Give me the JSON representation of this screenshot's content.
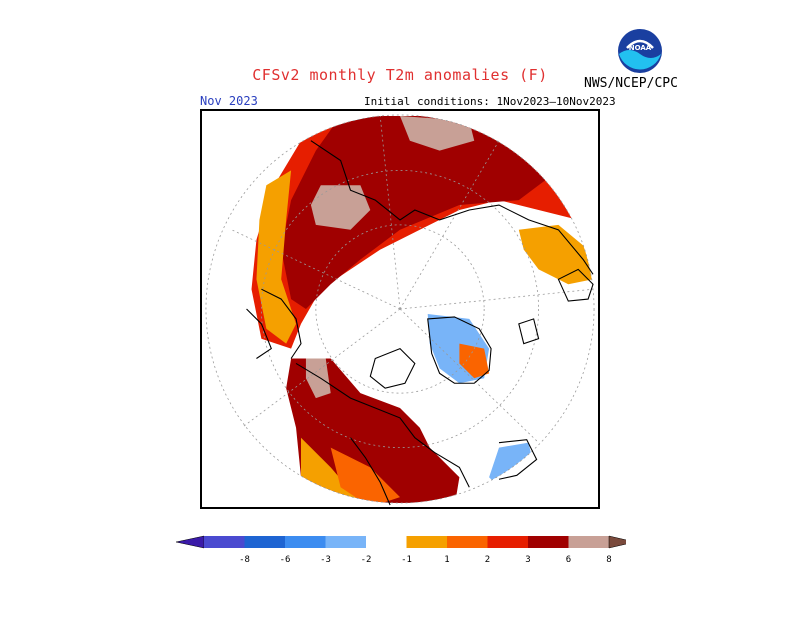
{
  "title": "CFSv2 monthly T2m anomalies (F)",
  "forecast_month": "Nov 2023",
  "initial_conditions": "Initial conditions: 1Nov2023–10Nov2023",
  "agency": "NWS/NCEP/CPC",
  "logo_text": "NOAA",
  "colors": {
    "title": "#e03030",
    "month": "#2a3fbf"
  },
  "legend": {
    "bins": [
      {
        "color": "#3a1aa8"
      },
      {
        "color": "#4a4ad0"
      },
      {
        "color": "#1e64d2"
      },
      {
        "color": "#3c8cf0"
      },
      {
        "color": "#78b4f8"
      },
      {
        "color": "#ffffff"
      },
      {
        "color": "#f5a000"
      },
      {
        "color": "#fa6400"
      },
      {
        "color": "#e61e00"
      },
      {
        "color": "#a00000"
      },
      {
        "color": "#c8a096"
      },
      {
        "color": "#7a4a3c"
      }
    ],
    "tick_labels": [
      "-8",
      "-6",
      "-3",
      "-2",
      "-1",
      "1",
      "2",
      "3",
      "6",
      "8"
    ]
  }
}
